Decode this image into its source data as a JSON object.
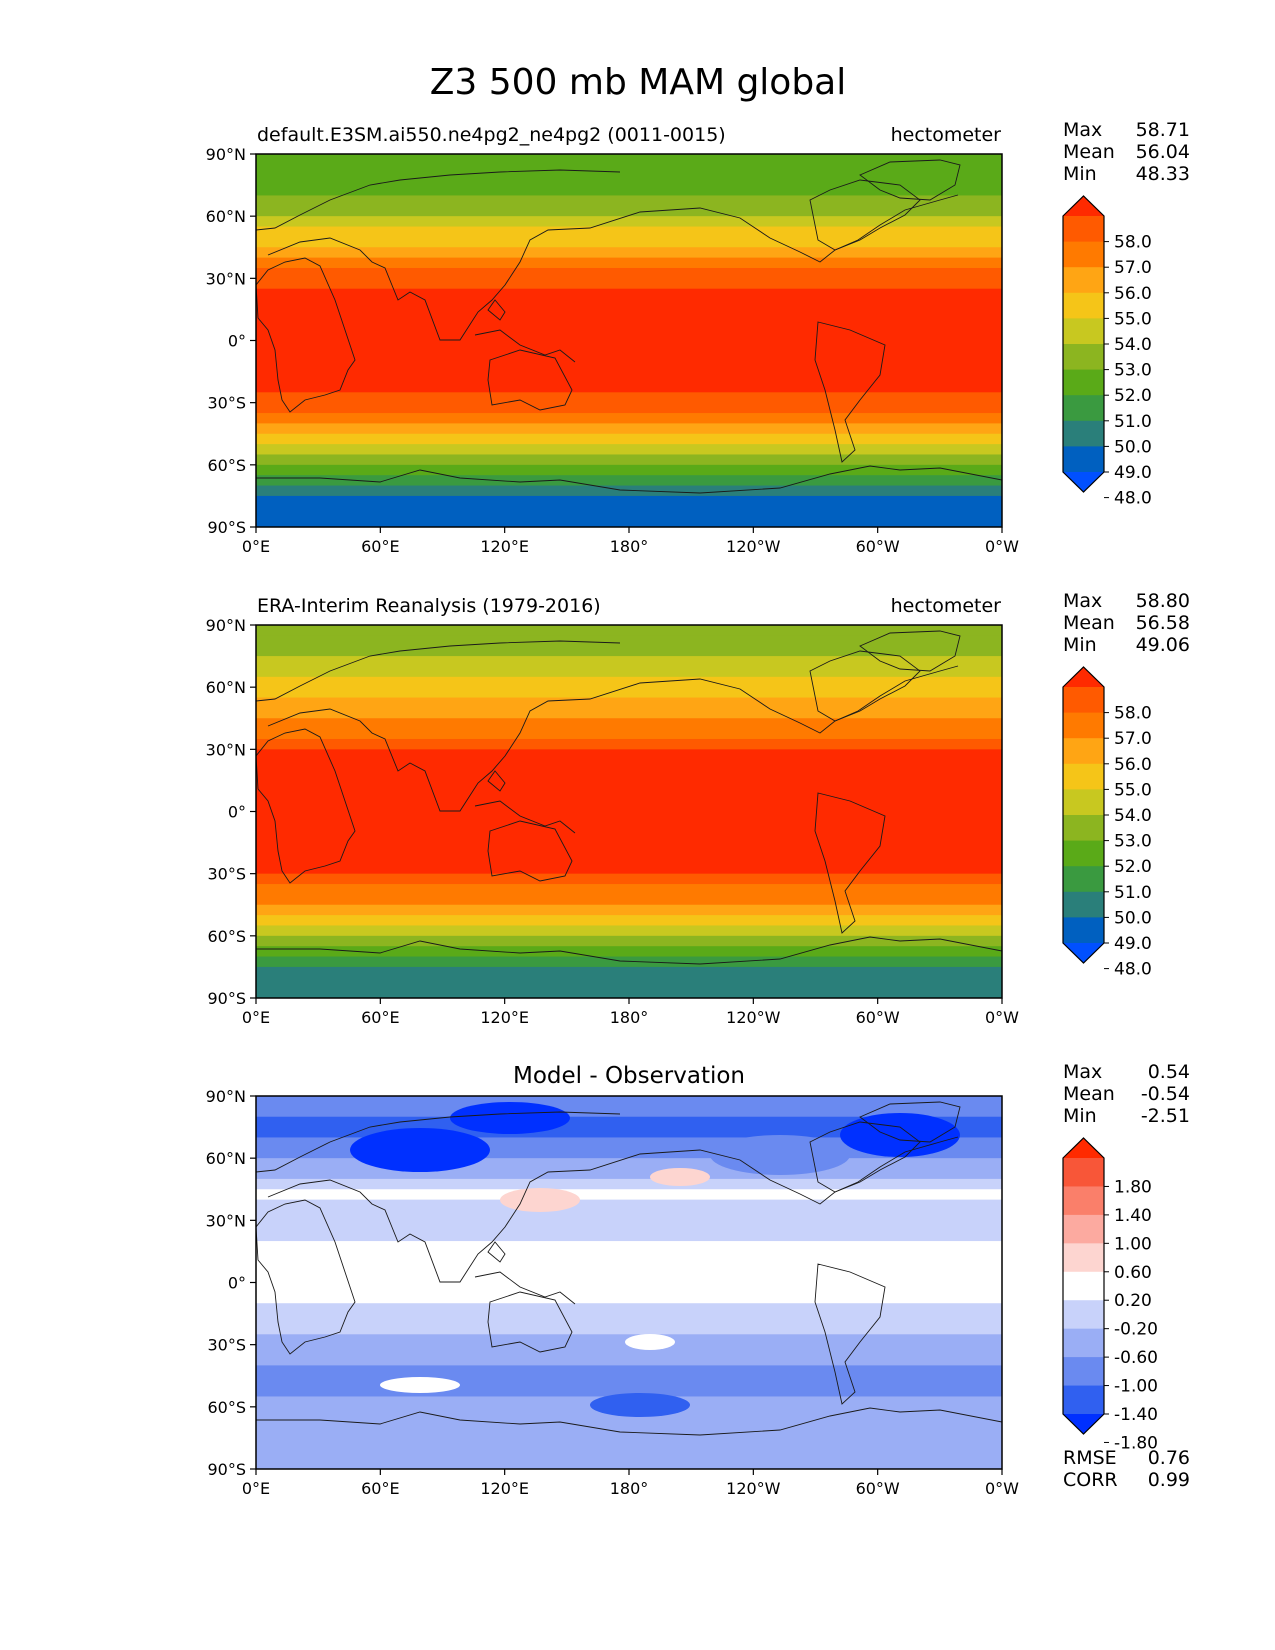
{
  "title": "Z3 500 mb MAM global",
  "panels": [
    {
      "title_left": "default.E3SM.ai550.ne4pg2_ne4pg2 (0011-0015)",
      "title_center": "",
      "title_right": "hectometer",
      "stats": [
        {
          "label": "Max",
          "value": "58.71"
        },
        {
          "label": "Mean",
          "value": "56.04"
        },
        {
          "label": "Min",
          "value": "48.33"
        }
      ],
      "colorbar_labels": [
        "58.0",
        "57.0",
        "56.0",
        "55.0",
        "54.0",
        "53.0",
        "52.0",
        "51.0",
        "50.0",
        "49.0",
        "48.0"
      ]
    },
    {
      "title_left": "ERA-Interim Reanalysis (1979-2016)",
      "title_center": "",
      "title_right": "hectometer",
      "stats": [
        {
          "label": "Max",
          "value": "58.80"
        },
        {
          "label": "Mean",
          "value": "56.58"
        },
        {
          "label": "Min",
          "value": "49.06"
        }
      ],
      "colorbar_labels": [
        "58.0",
        "57.0",
        "56.0",
        "55.0",
        "54.0",
        "53.0",
        "52.0",
        "51.0",
        "50.0",
        "49.0",
        "48.0"
      ]
    },
    {
      "title_left": "",
      "title_center": "Model - Observation",
      "title_right": "",
      "stats": [
        {
          "label": "Max",
          "value": "0.54"
        },
        {
          "label": "Mean",
          "value": "-0.54"
        },
        {
          "label": "Min",
          "value": "-2.51"
        }
      ],
      "colorbar_labels": [
        "1.80",
        "1.40",
        "1.00",
        "0.60",
        "0.20",
        "-0.20",
        "-0.60",
        "-1.00",
        "-1.40",
        "-1.80"
      ],
      "metrics": [
        {
          "label": "RMSE",
          "value": "0.76"
        },
        {
          "label": "CORR",
          "value": "0.99"
        }
      ]
    }
  ],
  "lat_ticks": [
    "90°N",
    "60°N",
    "30°N",
    "0°",
    "30°S",
    "60°S",
    "90°S"
  ],
  "lon_ticks": [
    "0°E",
    "60°E",
    "120°E",
    "180°",
    "120°W",
    "60°W",
    "0°W"
  ],
  "colors": {
    "field": [
      "#0050ff",
      "#0060c0",
      "#2a7f7a",
      "#3a9a40",
      "#5aaa18",
      "#8cb520",
      "#c8c820",
      "#f5c518",
      "#ffa514",
      "#ff7a00",
      "#ff5a00",
      "#ff2a00"
    ],
    "diff": [
      "#0030ff",
      "#3060f0",
      "#6a8af0",
      "#9aaef5",
      "#c8d2fa",
      "#ffffff",
      "#fdd5d0",
      "#fcaaa0",
      "#fa7f6a",
      "#f85638",
      "#ff2a00"
    ]
  },
  "chart_data": [
    {
      "type": "heatmap",
      "title": "default.E3SM.ai550.ne4pg2_ne4pg2 (0011-0015)",
      "units": "hectometer",
      "x": "longitude 0°E to 0°W",
      "y": "latitude 90°S to 90°N",
      "levels": [
        48,
        49,
        50,
        51,
        52,
        53,
        54,
        55,
        56,
        57,
        58
      ],
      "zonal_profile": {
        "lat": [
          90,
          85,
          80,
          75,
          70,
          65,
          60,
          55,
          50,
          45,
          40,
          35,
          30,
          25,
          20,
          10,
          0,
          -10,
          -20,
          -25,
          -30,
          -35,
          -40,
          -45,
          -50,
          -55,
          -60,
          -65,
          -70,
          -75,
          -80,
          -85,
          -90
        ],
        "value": [
          51.0,
          51.1,
          51.3,
          51.6,
          52.0,
          52.5,
          53.0,
          53.7,
          54.4,
          55.2,
          56.0,
          56.8,
          57.5,
          58.1,
          58.4,
          58.6,
          58.6,
          58.6,
          58.4,
          58.1,
          57.6,
          57.0,
          56.2,
          55.3,
          54.3,
          53.3,
          52.2,
          51.0,
          49.9,
          49.0,
          48.6,
          48.4,
          48.33
        ]
      }
    },
    {
      "type": "heatmap",
      "title": "ERA-Interim Reanalysis (1979-2016)",
      "units": "hectometer",
      "x": "longitude 0°E to 0°W",
      "y": "latitude 90°S to 90°N",
      "levels": [
        48,
        49,
        50,
        51,
        52,
        53,
        54,
        55,
        56,
        57,
        58
      ],
      "zonal_profile": {
        "lat": [
          90,
          85,
          80,
          75,
          70,
          65,
          60,
          55,
          50,
          45,
          40,
          35,
          30,
          25,
          20,
          10,
          0,
          -10,
          -20,
          -25,
          -30,
          -35,
          -40,
          -45,
          -50,
          -55,
          -60,
          -65,
          -70,
          -75,
          -80,
          -85,
          -90
        ],
        "value": [
          52.2,
          52.4,
          52.7,
          53.0,
          53.4,
          53.8,
          54.2,
          54.7,
          55.3,
          55.9,
          56.6,
          57.3,
          57.9,
          58.3,
          58.5,
          58.7,
          58.75,
          58.7,
          58.5,
          58.2,
          57.8,
          57.2,
          56.5,
          55.6,
          54.6,
          53.6,
          52.6,
          51.6,
          50.6,
          49.7,
          49.3,
          49.1,
          49.06
        ]
      }
    },
    {
      "type": "heatmap",
      "title": "Model - Observation",
      "units": "hectometer",
      "x": "longitude 0°E to 0°W",
      "y": "latitude 90°S to 90°N",
      "levels": [
        -1.8,
        -1.4,
        -1.0,
        -0.6,
        -0.2,
        0.2,
        0.6,
        1.0,
        1.4,
        1.8
      ],
      "zonal_profile": {
        "lat": [
          90,
          85,
          80,
          75,
          70,
          65,
          60,
          55,
          50,
          45,
          40,
          35,
          30,
          25,
          20,
          10,
          0,
          -10,
          -20,
          -25,
          -30,
          -35,
          -40,
          -45,
          -50,
          -55,
          -60,
          -65,
          -70,
          -75,
          -80,
          -85,
          -90
        ],
        "value": [
          -1.2,
          -1.3,
          -1.4,
          -1.45,
          -1.5,
          -1.3,
          -1.0,
          -0.8,
          -0.5,
          -0.3,
          -0.1,
          -0.4,
          -0.5,
          -0.5,
          -0.2,
          0.0,
          0.0,
          -0.1,
          -0.4,
          -0.6,
          -0.7,
          -0.9,
          -1.1,
          -1.3,
          -1.2,
          -1.0,
          -0.8,
          -0.8,
          -0.9,
          -0.9,
          -0.8,
          -0.75,
          -0.7
        ]
      },
      "rmse": 0.76,
      "corr": 0.99
    }
  ]
}
